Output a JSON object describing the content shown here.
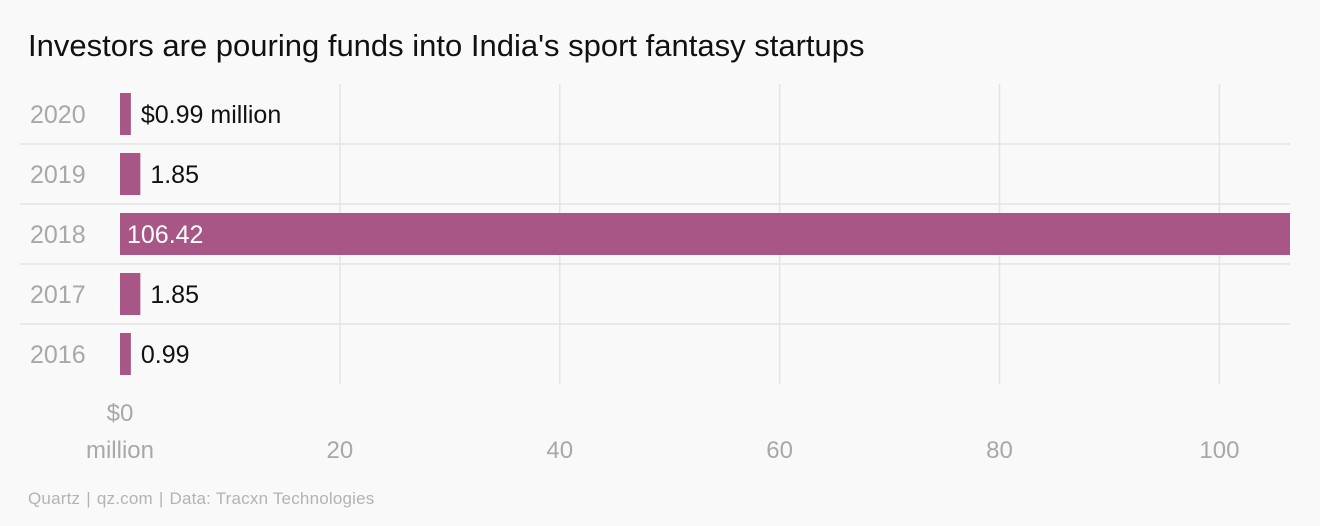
{
  "chart_data": {
    "type": "bar",
    "orientation": "horizontal",
    "title": "Investors are pouring funds into India's sport fantasy startups",
    "categories": [
      "2020",
      "2019",
      "2018",
      "2017",
      "2016"
    ],
    "values": [
      0.99,
      1.85,
      106.42,
      1.85,
      0.99
    ],
    "value_labels": [
      "$0.99 million",
      "1.85",
      "106.42",
      "1.85",
      "0.99"
    ],
    "x_ticks": [
      0,
      20,
      40,
      60,
      80,
      100
    ],
    "x_tick_labels": [
      "$0\nmillion",
      "20",
      "40",
      "60",
      "80",
      "100"
    ],
    "xlim": [
      0,
      106.42
    ],
    "grid": true,
    "xlabel": "",
    "ylabel": ""
  },
  "colors": {
    "bar": "#a85685",
    "background": "#f9f9f9",
    "grid": "#e4e4e4",
    "category_text": "#a8a8a8",
    "tick_text": "#a8a8a8",
    "value_text": "#111111",
    "value_text_inside": "#ffffff"
  },
  "footer": {
    "brand": "Quartz",
    "site": "qz.com",
    "source": "Data: Tracxn Technologies",
    "separator": "|"
  }
}
